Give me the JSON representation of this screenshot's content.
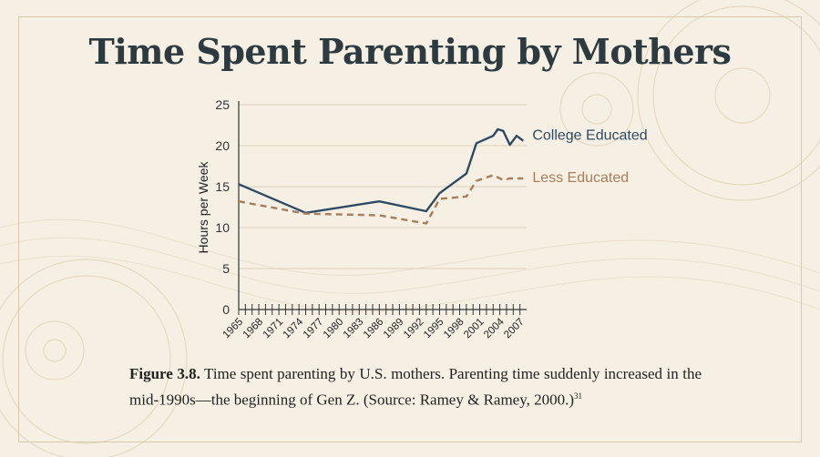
{
  "title": "Time Spent Parenting by Mothers",
  "colors": {
    "background": "#f6f0e4",
    "college": "#2f4a63",
    "less": "#a87d5a",
    "axis": "#333333"
  },
  "chart_data": {
    "type": "line",
    "title": "Time Spent Parenting by Mothers",
    "ylabel": "Hours per Week",
    "xlabel": "",
    "ylim": [
      0,
      25
    ],
    "xlim": [
      1965,
      2008
    ],
    "yticks": [
      0,
      5,
      10,
      15,
      20,
      25
    ],
    "xticks": [
      "1965",
      "1968",
      "1971",
      "1974",
      "1977",
      "1980",
      "1983",
      "1986",
      "1989",
      "1992",
      "1995",
      "1998",
      "2001",
      "2004",
      "2007"
    ],
    "grid": true,
    "legend": "end-of-line labels",
    "series": [
      {
        "name": "College Educated",
        "style": "solid",
        "color": "#2f4a63",
        "points": [
          [
            1965,
            15.3
          ],
          [
            1975,
            11.8
          ],
          [
            1986,
            13.2
          ],
          [
            1993,
            12.0
          ],
          [
            1995,
            14.2
          ],
          [
            1999,
            16.6
          ],
          [
            2000.5,
            20.3
          ],
          [
            2003,
            21.2
          ],
          [
            2003.7,
            22.0
          ],
          [
            2004.5,
            21.8
          ],
          [
            2005.5,
            20.1
          ],
          [
            2006.5,
            21.2
          ],
          [
            2007.5,
            20.6
          ]
        ]
      },
      {
        "name": "Less Educated",
        "style": "dashed",
        "color": "#a87d5a",
        "points": [
          [
            1965,
            13.2
          ],
          [
            1975,
            11.7
          ],
          [
            1986,
            11.5
          ],
          [
            1993,
            10.5
          ],
          [
            1995,
            13.5
          ],
          [
            1999,
            13.8
          ],
          [
            2000.5,
            15.7
          ],
          [
            2003,
            16.4
          ],
          [
            2004.5,
            15.8
          ],
          [
            2005.5,
            16.0
          ],
          [
            2007.5,
            16.0
          ]
        ]
      }
    ]
  },
  "caption": {
    "label": "Figure 3.8.",
    "text": " Time spent parenting by U.S. mothers. Parenting time suddenly increased in the mid-1990s—the beginning of Gen Z. (Source: Ramey & Ramey, 2000.)",
    "footnote": "31"
  }
}
